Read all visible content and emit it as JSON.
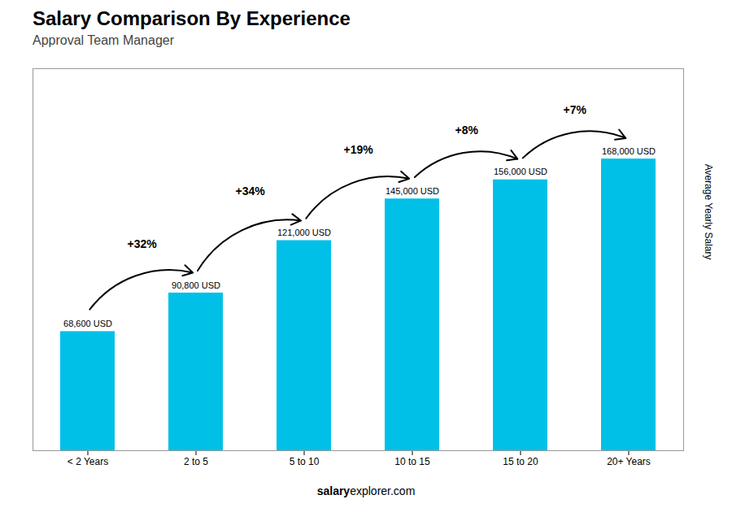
{
  "chart_data": {
    "type": "bar",
    "title": "Salary Comparison By Experience",
    "subtitle": "Approval Team Manager",
    "categories": [
      "< 2 Years",
      "2 to 5",
      "5 to 10",
      "10 to 15",
      "15 to 20",
      "20+ Years"
    ],
    "values": [
      68600,
      90800,
      121000,
      145000,
      156000,
      168000
    ],
    "value_labels": [
      "68,600 USD",
      "90,800 USD",
      "121,000 USD",
      "145,000 USD",
      "156,000 USD",
      "168,000 USD"
    ],
    "data_labels": true,
    "color": "#00c0e8",
    "ylabel": "Average Yearly Salary",
    "ylim": [
      0,
      220000
    ],
    "tick_labels": "x",
    "annotations": [
      {
        "text": "+32%",
        "from": "< 2 Years",
        "to": "2 to 5"
      },
      {
        "text": "+34%",
        "from": "2 to 5",
        "to": "5 to 10"
      },
      {
        "text": "+19%",
        "from": "5 to 10",
        "to": "10 to 15"
      },
      {
        "text": "+8%",
        "from": "10 to 15",
        "to": "15 to 20"
      },
      {
        "text": "+7%",
        "from": "15 to 20",
        "to": "20+ Years"
      }
    ],
    "footer_bold": "salary",
    "footer_regular": "explorer.com"
  }
}
